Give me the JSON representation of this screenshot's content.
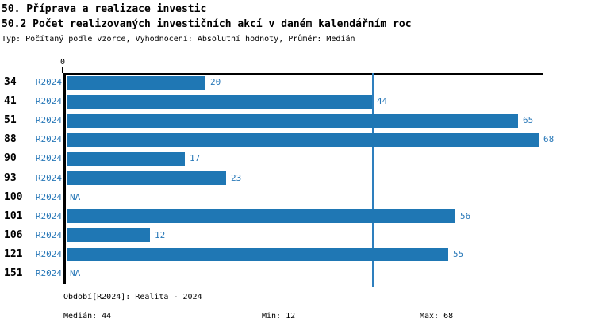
{
  "header": {
    "title_line1": "50. Příprava a realizace investic",
    "title_line2": "50.2 Počet realizovaných investičních akcí v daném kalendářním roc",
    "subtitle": "Typ: Počítaný podle vzorce, Vyhodnocení: Absolutní hodnoty, Průměr: Medián"
  },
  "chart_data": {
    "type": "bar",
    "orientation": "horizontal",
    "title": "50.2 Počet realizovaných investičních akcí v daném kalendářním roc",
    "categories": [
      "34",
      "41",
      "51",
      "88",
      "90",
      "93",
      "100",
      "101",
      "106",
      "121",
      "151"
    ],
    "series_label": "R2024",
    "values": [
      20,
      44,
      65,
      68,
      17,
      23,
      null,
      56,
      12,
      55,
      null
    ],
    "value_labels": [
      "20",
      "44",
      "65",
      "68",
      "17",
      "23",
      "NA",
      "56",
      "12",
      "55",
      "NA"
    ],
    "xlim": [
      0,
      68.7
    ],
    "x_tick_label": "0",
    "median_reference_line": 44,
    "grid": "off",
    "legend": "none",
    "bar_color": "#1f77b4",
    "label_color": "#2878b8",
    "median_line_color": "#2e7fbe"
  },
  "footer": {
    "period": "Období[R2024]: Realita - 2024",
    "median": "Medián: 44",
    "min": "Min: 12",
    "max": "Max: 68"
  }
}
